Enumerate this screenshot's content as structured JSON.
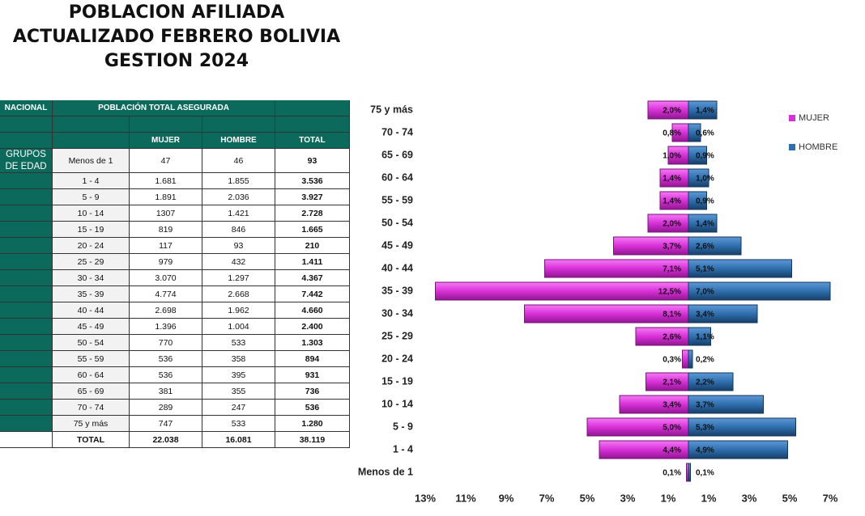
{
  "title_lines": [
    "POBLACION AFILIADA",
    "ACTUALIZADO FEBRERO BOLIVIA",
    "GESTION 2024"
  ],
  "table": {
    "nacional": "NACIONAL",
    "poblacion": "POBLACIÓN  TOTAL ASEGURADA",
    "columns": [
      "MUJER",
      "HOMBRE",
      "TOTAL"
    ],
    "grupos": "GRUPOS DE EDAD",
    "rows": [
      [
        "Menos de 1",
        "47",
        "46",
        "93"
      ],
      [
        "1 - 4",
        "1.681",
        "1.855",
        "3.536"
      ],
      [
        "5 - 9",
        "1.891",
        "2.036",
        "3.927"
      ],
      [
        "10 - 14",
        "1307",
        "1.421",
        "2.728"
      ],
      [
        "15 - 19",
        "819",
        "846",
        "1.665"
      ],
      [
        "20 - 24",
        "117",
        "93",
        "210"
      ],
      [
        "25 - 29",
        "979",
        "432",
        "1.411"
      ],
      [
        "30 - 34",
        "3.070",
        "1.297",
        "4.367"
      ],
      [
        "35 - 39",
        "4.774",
        "2.668",
        "7.442"
      ],
      [
        "40 - 44",
        "2.698",
        "1.962",
        "4.660"
      ],
      [
        "45 - 49",
        "1.396",
        "1.004",
        "2.400"
      ],
      [
        "50 - 54",
        "770",
        "533",
        "1.303"
      ],
      [
        "55 - 59",
        "536",
        "358",
        "894"
      ],
      [
        "60 - 64",
        "536",
        "395",
        "931"
      ],
      [
        "65 - 69",
        "381",
        "355",
        "736"
      ],
      [
        "70 - 74",
        "289",
        "247",
        "536"
      ],
      [
        "75 y más",
        "747",
        "533",
        "1.280"
      ]
    ],
    "total": [
      "TOTAL",
      "22.038",
      "16.081",
      "38.119"
    ]
  },
  "chart_data": {
    "type": "pyramid",
    "categories": [
      "75 y más",
      "70 - 74",
      "65 - 69",
      "60 - 64",
      "55 - 59",
      "50 - 54",
      "45 - 49",
      "40 - 44",
      "35 - 39",
      "30 - 34",
      "25 - 29",
      "20 - 24",
      "15 - 19",
      "10 - 14",
      "5 - 9",
      "1 - 4",
      "Menos de 1"
    ],
    "series": [
      {
        "name": "MUJER",
        "color": "#d830d8",
        "values": [
          2.0,
          0.8,
          1.0,
          1.4,
          1.4,
          2.0,
          3.7,
          7.1,
          12.5,
          8.1,
          2.6,
          0.3,
          2.1,
          3.4,
          5.0,
          4.4,
          0.1
        ],
        "value_labels": [
          "2,0%",
          "0,8%",
          "1,0%",
          "1,4%",
          "1,4%",
          "2,0%",
          "3,7%",
          "7,1%",
          "12,5%",
          "8,1%",
          "2,6%",
          "0,3%",
          "2,1%",
          "3,4%",
          "5,0%",
          "4,4%",
          "0,1%"
        ]
      },
      {
        "name": "HOMBRE",
        "color": "#2f6fae",
        "values": [
          1.4,
          0.6,
          0.9,
          1.0,
          0.9,
          1.4,
          2.6,
          5.1,
          7.0,
          3.4,
          1.1,
          0.2,
          2.2,
          3.7,
          5.3,
          4.9,
          0.1
        ],
        "value_labels": [
          "1,4%",
          "0,6%",
          "0,9%",
          "1,0%",
          "0,9%",
          "1,4%",
          "2,6%",
          "5,1%",
          "7,0%",
          "3,4%",
          "1,1%",
          "0,2%",
          "2,2%",
          "3,7%",
          "5,3%",
          "4,9%",
          "0,1%"
        ]
      }
    ],
    "xlim": [
      -13,
      7
    ],
    "xticks": [
      {
        "value": -13,
        "label": "13%"
      },
      {
        "value": -11,
        "label": "11%"
      },
      {
        "value": -9,
        "label": "9%"
      },
      {
        "value": -7,
        "label": "7%"
      },
      {
        "value": -5,
        "label": "5%"
      },
      {
        "value": -3,
        "label": "3%"
      },
      {
        "value": -1,
        "label": "1%"
      },
      {
        "value": 1,
        "label": "1%"
      },
      {
        "value": 3,
        "label": "3%"
      },
      {
        "value": 5,
        "label": "5%"
      },
      {
        "value": 7,
        "label": "7%"
      }
    ],
    "grid": false,
    "legend": "top-right"
  }
}
